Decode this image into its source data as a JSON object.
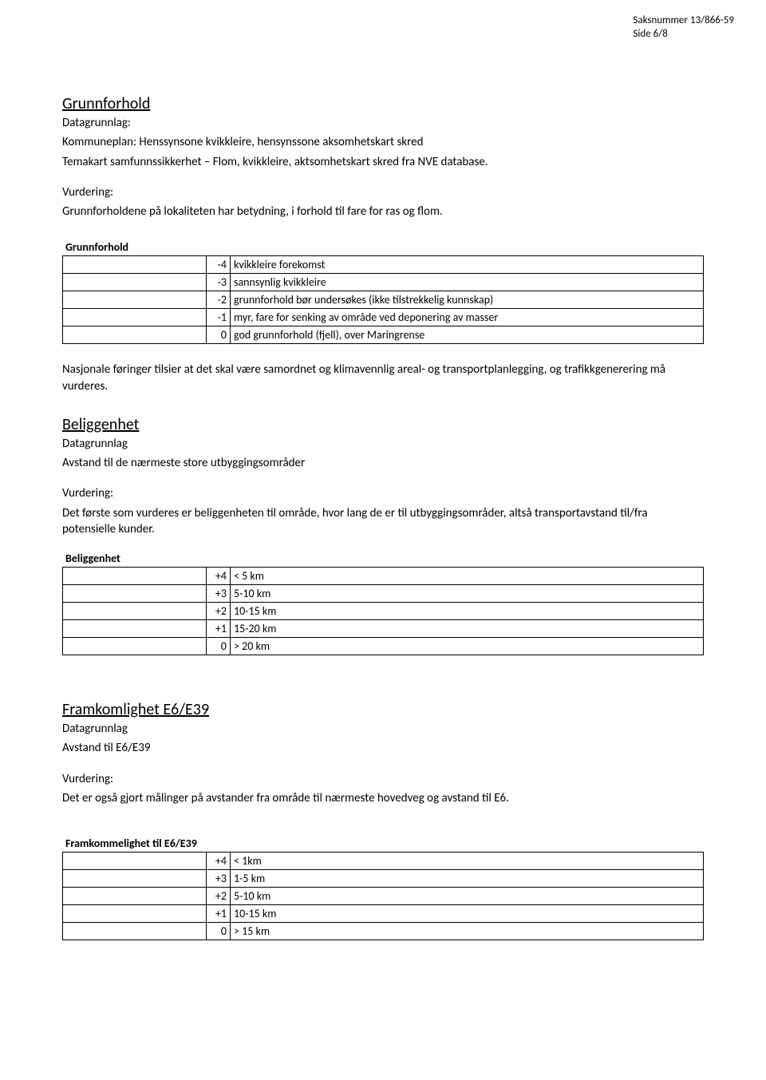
{
  "header": {
    "caseNumber": "Saksnummer 13/866-59",
    "pageInfo": "Side 6/8"
  },
  "sections": {
    "grunnforhold": {
      "title": "Grunnforhold",
      "dataLabel": "Datagrunnlag:",
      "dataLine1": "Kommuneplan: Henssynsone kvikkleire, hensynssone aksomhetskart skred",
      "dataLine2": "Temakart samfunnssikkerhet – Flom, kvikkleire, aktsomhetskart skred fra NVE database.",
      "vurderingLabel": "Vurdering:",
      "vurderingText": "Grunnforholdene på lokaliteten har betydning, i forhold til fare for ras og flom.",
      "tableTitle": "Grunnforhold",
      "rows": [
        {
          "score": "-4",
          "text": "kvikkleire forekomst"
        },
        {
          "score": "-3",
          "text": "sannsynlig kvikkleire"
        },
        {
          "score": "-2",
          "text": "grunnforhold bør undersøkes (ikke tilstrekkelig kunnskap)"
        },
        {
          "score": "-1",
          "text": "myr, fare for senking av område ved deponering av masser"
        },
        {
          "score": "0",
          "text": "god grunnforhold (fjell), over Maringrense"
        }
      ],
      "afterTable": "Nasjonale føringer tilsier at det skal være samordnet og klimavennlig areal- og transportplanlegging, og trafikkgenerering må vurderes."
    },
    "beliggenhet": {
      "title": "Beliggenhet",
      "dataLabel": "Datagrunnlag",
      "dataLine": "Avstand til de nærmeste store utbyggingsområder",
      "vurderingLabel": "Vurdering:",
      "vurderingText": "Det første som vurderes er beliggenheten til område, hvor lang de er til utbyggingsområder, altså transportavstand til/fra potensielle kunder.",
      "tableTitle": "Beliggenhet",
      "rows": [
        {
          "score": "+4",
          "text": "< 5 km"
        },
        {
          "score": "+3",
          "text": "5-10 km"
        },
        {
          "score": "+2",
          "text": "10-15 km"
        },
        {
          "score": "+1",
          "text": "15-20 km"
        },
        {
          "score": "0",
          "text": "> 20 km"
        }
      ]
    },
    "framkomlighet": {
      "title": "Framkomlighet E6/E39",
      "dataLabel": "Datagrunnlag",
      "dataLine": "Avstand til E6/E39",
      "vurderingLabel": "Vurdering:",
      "vurderingText": "Det er også gjort målinger på avstander fra område til nærmeste hovedveg og avstand til E6.",
      "tableTitle": "Framkommelighet til E6/E39",
      "rows": [
        {
          "score": "+4",
          "text": "<  1km"
        },
        {
          "score": "+3",
          "text": "1-5 km"
        },
        {
          "score": "+2",
          "text": "5-10 km"
        },
        {
          "score": "+1",
          "text": "10-15 km"
        },
        {
          "score": "0",
          "text": "> 15 km"
        }
      ]
    }
  }
}
